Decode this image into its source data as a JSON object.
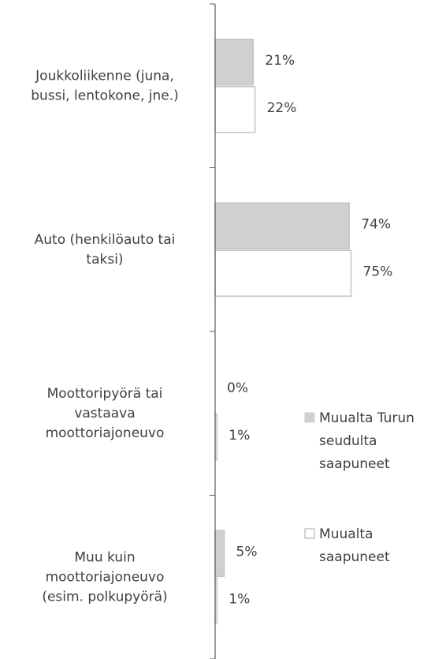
{
  "chart_data": {
    "type": "hbar",
    "categories": [
      [
        "Joukkoliikenne (juna,",
        "bussi, lentokone, jne.)"
      ],
      [
        "Auto (henkilöauto tai",
        "taksi)"
      ],
      [
        "Moottoripyörä tai",
        "vastaava",
        "moottoriajoneuvo"
      ],
      [
        "Muu kuin",
        "moottoriajoneuvo",
        "(esim. polkupyörä)"
      ]
    ],
    "series": [
      {
        "name": [
          "Muualta Turun",
          "seudulta",
          "saapuneet"
        ],
        "color": "#d0d0d0",
        "values": [
          21,
          74,
          0,
          5
        ],
        "value_labels": [
          "21%",
          "74%",
          "0%",
          "5%"
        ]
      },
      {
        "name": [
          "Muualta",
          "saapuneet"
        ],
        "color": "#ffffff",
        "values": [
          22,
          75,
          1,
          1
        ],
        "value_labels": [
          "22%",
          "75%",
          "1%",
          "1%"
        ]
      }
    ],
    "xlim": [
      0,
      100
    ],
    "legend": "right"
  }
}
